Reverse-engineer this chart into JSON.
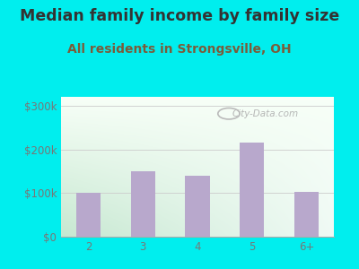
{
  "title": "Median family income by family size",
  "subtitle": "All residents in Strongsville, OH",
  "categories": [
    "2",
    "3",
    "4",
    "5",
    "6+"
  ],
  "values": [
    100000,
    150000,
    140000,
    215000,
    103000
  ],
  "bar_color": "#b8a8cc",
  "title_color": "#333333",
  "subtitle_color": "#7a5c3a",
  "background_outer": "#00EEEE",
  "ytick_labels": [
    "$0",
    "$100k",
    "$200k",
    "$300k"
  ],
  "ytick_values": [
    0,
    100000,
    200000,
    300000
  ],
  "ylim": [
    0,
    320000
  ],
  "watermark": "City-Data.com",
  "tick_color": "#777777",
  "grid_color": "#cccccc",
  "title_fontsize": 12.5,
  "subtitle_fontsize": 10,
  "tick_fontsize": 8.5
}
